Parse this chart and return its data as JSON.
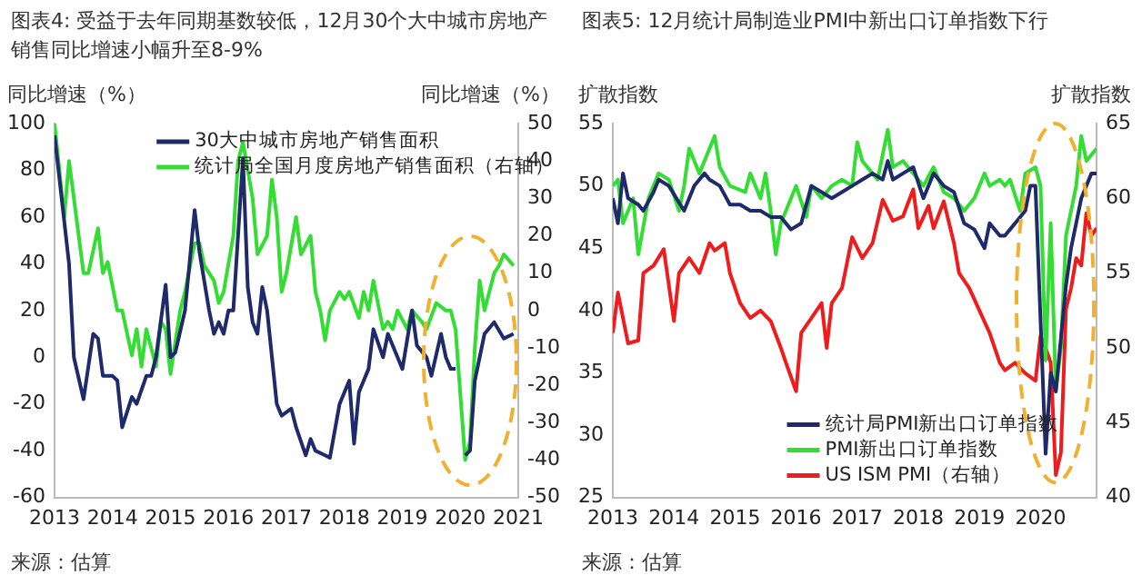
{
  "chart_data": [
    {
      "type": "line",
      "title": "图表4: 受益于去年同期基数较低，12月30个大中城市房地产销售同比增速小幅升至8-9%",
      "ylabel": "同比增速（%）",
      "y2label": "同比增速（%）",
      "annotations": [
        "来源：估算"
      ],
      "legend": "top",
      "xlim": [
        "2013-01",
        "2021-01"
      ],
      "xticks": [
        "2013",
        "2014",
        "2015",
        "2016",
        "2017",
        "2018",
        "2019",
        "2020",
        "2021"
      ],
      "ylim": [
        -60,
        100
      ],
      "yticks": [
        -60,
        -40,
        -20,
        0,
        20,
        40,
        60,
        80,
        100
      ],
      "y2lim": [
        -50,
        50
      ],
      "y2ticks": [
        -50,
        -40,
        -30,
        -20,
        -10,
        0,
        10,
        20,
        30,
        40,
        50
      ],
      "series": [
        {
          "name": "30大中城市房地产销售面积",
          "color": "#1f2a6b",
          "x": [
            "2013-01",
            "2013-04",
            "2013-05",
            "2013-07",
            "2013-09",
            "2013-10",
            "2013-11",
            "2014-01",
            "2014-02",
            "2014-03",
            "2014-05",
            "2014-06",
            "2014-08",
            "2014-09",
            "2014-10",
            "2014-12",
            "2015-01",
            "2015-02",
            "2015-04",
            "2015-06",
            "2015-07",
            "2015-09",
            "2015-10",
            "2015-11",
            "2015-12",
            "2016-01",
            "2016-02",
            "2016-04",
            "2016-05",
            "2016-06",
            "2016-07",
            "2016-08",
            "2016-09",
            "2016-10",
            "2016-11",
            "2016-12",
            "2017-02",
            "2017-03",
            "2017-05",
            "2017-06",
            "2017-07",
            "2017-09",
            "2017-10",
            "2017-12",
            "2018-02",
            "2018-03",
            "2018-04",
            "2018-06",
            "2018-07",
            "2018-09",
            "2018-10",
            "2018-12",
            "2019-01",
            "2019-03",
            "2019-04",
            "2019-06",
            "2019-07",
            "2019-09",
            "2019-10",
            "2019-11",
            "2019-12",
            "2020-01",
            "2020-02",
            "2020-03",
            "2020-04",
            "2020-06",
            "2020-08",
            "2020-10",
            "2020-12"
          ],
          "values": [
            95,
            40,
            0,
            -18,
            10,
            8,
            -8,
            -8,
            -10,
            -30,
            -17,
            -20,
            -8,
            -8,
            0,
            31,
            0,
            2,
            20,
            63,
            45,
            20,
            10,
            15,
            10,
            20,
            20,
            85,
            30,
            15,
            10,
            30,
            20,
            0,
            -20,
            -25,
            -22,
            -30,
            -42,
            -35,
            -40,
            -42,
            -43,
            -20,
            -10,
            -37,
            -15,
            -5,
            12,
            0,
            10,
            0,
            -5,
            20,
            5,
            0,
            -8,
            10,
            0,
            -5,
            -5,
            null,
            -42,
            -40,
            -10,
            10,
            15,
            8,
            10
          ]
        },
        {
          "name": "统计局全国月度房地产销售面积（右轴）",
          "color": "#33dd33",
          "axis": "y2",
          "x": [
            "2013-01",
            "2013-03",
            "2013-04",
            "2013-05",
            "2013-07",
            "2013-08",
            "2013-10",
            "2013-11",
            "2013-12",
            "2014-02",
            "2014-03",
            "2014-05",
            "2014-06",
            "2014-07",
            "2014-08",
            "2014-10",
            "2014-11",
            "2014-12",
            "2015-01",
            "2015-03",
            "2015-04",
            "2015-06",
            "2015-07",
            "2015-08",
            "2015-10",
            "2015-11",
            "2015-12",
            "2016-02",
            "2016-03",
            "2016-04",
            "2016-06",
            "2016-07",
            "2016-09",
            "2016-10",
            "2016-11",
            "2016-12",
            "2017-01",
            "2017-03",
            "2017-04",
            "2017-06",
            "2017-07",
            "2017-08",
            "2017-09",
            "2017-10",
            "2017-12",
            "2018-01",
            "2018-02",
            "2018-04",
            "2018-05",
            "2018-06",
            "2018-07",
            "2018-09",
            "2018-10",
            "2018-11",
            "2018-12",
            "2019-02",
            "2019-03",
            "2019-05",
            "2019-06",
            "2019-08",
            "2019-10",
            "2019-11",
            "2019-12",
            "2020-02",
            "2020-03",
            "2020-04",
            "2020-05",
            "2020-06",
            "2020-08",
            "2020-09",
            "2020-10",
            "2020-12"
          ],
          "values": [
            50,
            25,
            40,
            30,
            10,
            10,
            22,
            10,
            13,
            0,
            0,
            -12,
            -5,
            -15,
            -5,
            -15,
            -3,
            -5,
            -17,
            0,
            5,
            18,
            18,
            12,
            8,
            2,
            5,
            20,
            40,
            45,
            30,
            15,
            20,
            35,
            25,
            5,
            10,
            25,
            15,
            20,
            5,
            0,
            -8,
            0,
            5,
            3,
            5,
            -2,
            5,
            0,
            8,
            -5,
            -3,
            -5,
            0,
            -5,
            0,
            -3,
            -5,
            2,
            0,
            0,
            -5,
            -40,
            -35,
            -10,
            8,
            0,
            10,
            12,
            15,
            12
          ]
        }
      ]
    },
    {
      "type": "line",
      "title": "图表5: 12月统计局制造业PMI中新出口订单指数下行",
      "ylabel": "扩散指数",
      "y2label": "扩散指数",
      "annotations": [
        "来源：估算"
      ],
      "legend": "bottom",
      "xlim": [
        "2013-01",
        "2020-12"
      ],
      "xticks": [
        "2013",
        "2014",
        "2015",
        "2016",
        "2017",
        "2018",
        "2019",
        "2020"
      ],
      "ylim": [
        25,
        55
      ],
      "yticks": [
        25,
        30,
        35,
        40,
        45,
        50,
        55
      ],
      "y2lim": [
        40,
        65
      ],
      "y2ticks": [
        40,
        45,
        50,
        55,
        60,
        65
      ],
      "series": [
        {
          "name": "统计局PMI新出口订单指数",
          "color": "#1f2a6b",
          "x": [
            "2013-01",
            "2013-02",
            "2013-03",
            "2013-04",
            "2013-06",
            "2013-07",
            "2013-09",
            "2013-10",
            "2013-12",
            "2014-03",
            "2014-04",
            "2014-05",
            "2014-07",
            "2014-08",
            "2014-10",
            "2014-12",
            "2015-02",
            "2015-04",
            "2015-06",
            "2015-08",
            "2015-10",
            "2015-12",
            "2016-02",
            "2016-04",
            "2016-06",
            "2016-08",
            "2016-10",
            "2016-12",
            "2017-02",
            "2017-04",
            "2017-06",
            "2017-07",
            "2017-08",
            "2017-10",
            "2017-12",
            "2018-02",
            "2018-04",
            "2018-06",
            "2018-08",
            "2018-10",
            "2018-12",
            "2019-02",
            "2019-03",
            "2019-05",
            "2019-06",
            "2019-07",
            "2019-09",
            "2019-10",
            "2019-11",
            "2019-12",
            "2020-02",
            "2020-03",
            "2020-04",
            "2020-06",
            "2020-07",
            "2020-09",
            "2020-11",
            "2020-12"
          ],
          "values": [
            49,
            47,
            51,
            49,
            48.5,
            48,
            49.5,
            50.5,
            50,
            48,
            49,
            50,
            51,
            50.5,
            50,
            48.5,
            48.5,
            48,
            48,
            47.5,
            47.5,
            46.5,
            47,
            50,
            49.5,
            49,
            49.5,
            50,
            50.5,
            51,
            50.5,
            52,
            50.5,
            51,
            51.5,
            49,
            51,
            50,
            49.5,
            47,
            46.5,
            45,
            47,
            46,
            46,
            46.5,
            47.5,
            48,
            50,
            50,
            28.5,
            35,
            33.5,
            42,
            45,
            49,
            51,
            51
          ]
        },
        {
          "name": "PMI新出口订单指数",
          "color": "#33dd33",
          "x": [
            "2013-01",
            "2013-02",
            "2013-03",
            "2013-05",
            "2013-06",
            "2013-08",
            "2013-10",
            "2013-12",
            "2014-02",
            "2014-03",
            "2014-04",
            "2014-06",
            "2014-07",
            "2014-09",
            "2014-10",
            "2014-12",
            "2015-03",
            "2015-04",
            "2015-06",
            "2015-07",
            "2015-08",
            "2015-09",
            "2015-10",
            "2015-12",
            "2016-01",
            "2016-03",
            "2016-04",
            "2016-06",
            "2016-08",
            "2016-10",
            "2016-12",
            "2017-01",
            "2017-02",
            "2017-04",
            "2017-05",
            "2017-07",
            "2017-08",
            "2017-10",
            "2017-12",
            "2018-02",
            "2018-04",
            "2018-06",
            "2018-08",
            "2018-10",
            "2018-12",
            "2019-02",
            "2019-03",
            "2019-05",
            "2019-06",
            "2019-07",
            "2019-09",
            "2019-10",
            "2019-12",
            "2020-01",
            "2020-02",
            "2020-03",
            "2020-04",
            "2020-05",
            "2020-06",
            "2020-08",
            "2020-09",
            "2020-10",
            "2020-12"
          ],
          "values": [
            50,
            50.5,
            47,
            49,
            44.5,
            49,
            51,
            50.5,
            48,
            50,
            53,
            51,
            52,
            54,
            51.5,
            50,
            49.5,
            51,
            49,
            51,
            48,
            44.5,
            47,
            49,
            50,
            47.5,
            50,
            49,
            50,
            50.5,
            50,
            53.5,
            52,
            51,
            50.5,
            54.5,
            51.5,
            52,
            51,
            50,
            51.5,
            49.5,
            49,
            48,
            49,
            51,
            50,
            50.5,
            50,
            50.5,
            48,
            51,
            51.5,
            50,
            36,
            47,
            33.5,
            37,
            46,
            50,
            54,
            52,
            53
          ]
        },
        {
          "name": "US ISM PMI（右轴）",
          "color": "#ee1c1c",
          "axis": "y2",
          "x": [
            "2013-01",
            "2013-02",
            "2013-04",
            "2013-06",
            "2013-07",
            "2013-09",
            "2013-11",
            "2014-01",
            "2014-02",
            "2014-04",
            "2014-06",
            "2014-08",
            "2014-09",
            "2014-11",
            "2014-12",
            "2015-02",
            "2015-04",
            "2015-06",
            "2015-08",
            "2015-10",
            "2015-11",
            "2016-01",
            "2016-02",
            "2016-04",
            "2016-06",
            "2016-07",
            "2016-08",
            "2016-10",
            "2016-12",
            "2017-02",
            "2017-04",
            "2017-06",
            "2017-08",
            "2017-10",
            "2017-12",
            "2018-01",
            "2018-03",
            "2018-04",
            "2018-06",
            "2018-08",
            "2018-09",
            "2018-11",
            "2019-01",
            "2019-03",
            "2019-05",
            "2019-06",
            "2019-08",
            "2019-10",
            "2019-12",
            "2020-01",
            "2020-02",
            "2020-03",
            "2020-04",
            "2020-05",
            "2020-06",
            "2020-07",
            "2020-08",
            "2020-09",
            "2020-10",
            "2020-11",
            "2020-12"
          ],
          "values": [
            51,
            53.7,
            50.3,
            50.5,
            55,
            55.5,
            56.6,
            51.8,
            55,
            56,
            55,
            57,
            56.5,
            57,
            55,
            53,
            52,
            52.5,
            51.8,
            50,
            49,
            47.1,
            51,
            52,
            53,
            50,
            53,
            54,
            57.4,
            56,
            57,
            59.9,
            58.5,
            58.8,
            60.6,
            58,
            59.5,
            58,
            59.8,
            57,
            55,
            54,
            52.5,
            51,
            49,
            48.5,
            49,
            48.3,
            47.8,
            50.8,
            50,
            49,
            41.5,
            43,
            52.6,
            54,
            56,
            55.5,
            59,
            57.5,
            58
          ]
        }
      ]
    }
  ]
}
